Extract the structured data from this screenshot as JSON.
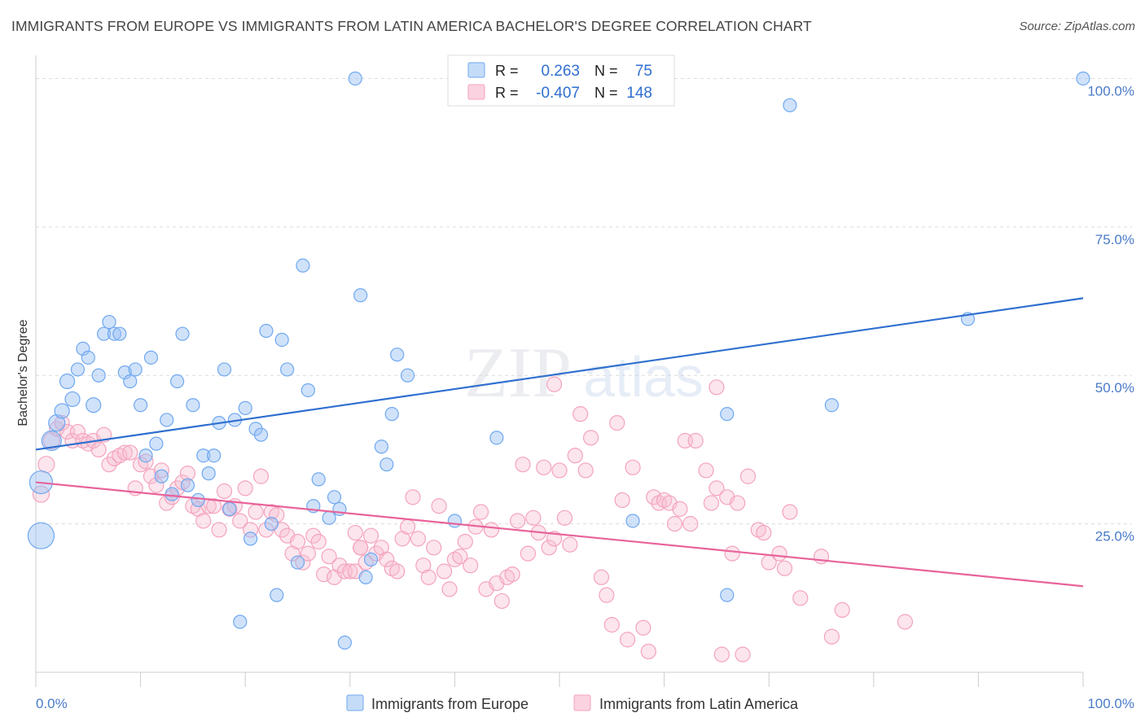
{
  "title": "IMMIGRANTS FROM EUROPE VS IMMIGRANTS FROM LATIN AMERICA BACHELOR'S DEGREE CORRELATION CHART",
  "source": "Source: ZipAtlas.com",
  "watermark": {
    "zip": "ZIP",
    "atlas": "atlas"
  },
  "colors": {
    "europe": "#6fa8f0",
    "europe_line": "#2f6fcf",
    "latam": "#f4a3bd",
    "latam_line": "#e8639a",
    "axis_text": "#4a7bc8"
  },
  "legend_top": {
    "rows": [
      {
        "r_label": "R =",
        "r_value": "0.263",
        "n_label": "N =",
        "n_value": "75"
      },
      {
        "r_label": "R =",
        "r_value": "-0.407",
        "n_label": "N =",
        "n_value": "148"
      }
    ]
  },
  "chart_data": {
    "type": "scatter",
    "ylabel": "Bachelor's Degree",
    "xlim": [
      0,
      100
    ],
    "ylim": [
      0,
      105
    ],
    "x_tick_labels": {
      "left": "0.0%",
      "right": "100.0%"
    },
    "y_tick_labels": [
      {
        "value": 100,
        "label": "100.0%"
      },
      {
        "value": 75,
        "label": "75.0%"
      },
      {
        "value": 50,
        "label": "50.0%"
      },
      {
        "value": 25,
        "label": "25.0%"
      }
    ],
    "grid": true,
    "legend_bottom": [
      "Immigrants from Europe",
      "Immigrants from Latin America"
    ],
    "series": [
      {
        "name": "Immigrants from Europe",
        "trend": [
          [
            0,
            37.5
          ],
          [
            100,
            63
          ]
        ],
        "points": [
          [
            0.5,
            23,
            16
          ],
          [
            0.5,
            32,
            14
          ],
          [
            1.5,
            39,
            12
          ],
          [
            2,
            42,
            10
          ],
          [
            2.5,
            44,
            9
          ],
          [
            3,
            49,
            9
          ],
          [
            3.5,
            46,
            9
          ],
          [
            4,
            51,
            8
          ],
          [
            4.5,
            54.5,
            8
          ],
          [
            5,
            53,
            8
          ],
          [
            5.5,
            45,
            9
          ],
          [
            6,
            50,
            8
          ],
          [
            6.5,
            57,
            8
          ],
          [
            7,
            59,
            8
          ],
          [
            7.5,
            57,
            8
          ],
          [
            8,
            57,
            8
          ],
          [
            8.5,
            50.5,
            8
          ],
          [
            9,
            49,
            8
          ],
          [
            9.5,
            51,
            8
          ],
          [
            10,
            45,
            8
          ],
          [
            10.5,
            36.5,
            8
          ],
          [
            11,
            53,
            8
          ],
          [
            11.5,
            38.5,
            8
          ],
          [
            12,
            33,
            8
          ],
          [
            12.5,
            42.5,
            8
          ],
          [
            13,
            30,
            8
          ],
          [
            13.5,
            49,
            8
          ],
          [
            14,
            57,
            8
          ],
          [
            14.5,
            31.5,
            8
          ],
          [
            15,
            45,
            8
          ],
          [
            15.5,
            29,
            8
          ],
          [
            16,
            36.5,
            8
          ],
          [
            16.5,
            33.5,
            8
          ],
          [
            17,
            36.5,
            8
          ],
          [
            17.5,
            42,
            8
          ],
          [
            18,
            51,
            8
          ],
          [
            18.5,
            27.5,
            8
          ],
          [
            19,
            42.5,
            8
          ],
          [
            20,
            44.5,
            8
          ],
          [
            19.5,
            8.5,
            8
          ],
          [
            20.5,
            22.5,
            8
          ],
          [
            21,
            41,
            8
          ],
          [
            21.5,
            40,
            8
          ],
          [
            22,
            57.5,
            8
          ],
          [
            22.5,
            25,
            8
          ],
          [
            23,
            13,
            8
          ],
          [
            23.5,
            56,
            8
          ],
          [
            24,
            51,
            8
          ],
          [
            25,
            18.5,
            8
          ],
          [
            25.5,
            68.5,
            8
          ],
          [
            26,
            47.5,
            8
          ],
          [
            26.5,
            28,
            8
          ],
          [
            27,
            32.5,
            8
          ],
          [
            28,
            26,
            8
          ],
          [
            28.5,
            29.5,
            8
          ],
          [
            29,
            27.5,
            8
          ],
          [
            29.5,
            5,
            8
          ],
          [
            30.5,
            100,
            8
          ],
          [
            31,
            63.5,
            8
          ],
          [
            31.5,
            16,
            8
          ],
          [
            32,
            19,
            8
          ],
          [
            33,
            38,
            8
          ],
          [
            33.5,
            35,
            8
          ],
          [
            34,
            43.5,
            8
          ],
          [
            34.5,
            53.5,
            8
          ],
          [
            35.5,
            50,
            8
          ],
          [
            40,
            25.5,
            8
          ],
          [
            44,
            39.5,
            8
          ],
          [
            57,
            25.5,
            8
          ],
          [
            66,
            13,
            8
          ],
          [
            66,
            43.5,
            8
          ],
          [
            72,
            95.5,
            8
          ],
          [
            76,
            45,
            8
          ],
          [
            89,
            59.5,
            8
          ],
          [
            100,
            100,
            8
          ]
        ]
      },
      {
        "name": "Immigrants from Latin America",
        "trend": [
          [
            0,
            32
          ],
          [
            100,
            14.5
          ]
        ],
        "points": [
          [
            0.5,
            30,
            10
          ],
          [
            1,
            35,
            10
          ],
          [
            1.5,
            39,
            10
          ],
          [
            2,
            41,
            9
          ],
          [
            2.5,
            42,
            9
          ],
          [
            3,
            40.5,
            9
          ],
          [
            3.5,
            39,
            9
          ],
          [
            4,
            40.5,
            9
          ],
          [
            4.5,
            39,
            9
          ],
          [
            5,
            38.5,
            9
          ],
          [
            5.5,
            39,
            9
          ],
          [
            6,
            37.5,
            9
          ],
          [
            6.5,
            40,
            9
          ],
          [
            7,
            35,
            9
          ],
          [
            7.5,
            36,
            9
          ],
          [
            8,
            36.5,
            9
          ],
          [
            8.5,
            37,
            9
          ],
          [
            9,
            37,
            9
          ],
          [
            9.5,
            31,
            9
          ],
          [
            10,
            35,
            9
          ],
          [
            10.5,
            35.5,
            9
          ],
          [
            11,
            33,
            9
          ],
          [
            11.5,
            31.5,
            9
          ],
          [
            12,
            34,
            9
          ],
          [
            12.5,
            28.5,
            9
          ],
          [
            13,
            29.5,
            9
          ],
          [
            13.5,
            31,
            9
          ],
          [
            14,
            32,
            9
          ],
          [
            14.5,
            33.5,
            9
          ],
          [
            15,
            28,
            9
          ],
          [
            15.5,
            27.5,
            9
          ],
          [
            16,
            25.5,
            9
          ],
          [
            16.5,
            28,
            9
          ],
          [
            17,
            28,
            9
          ],
          [
            17.5,
            24,
            9
          ],
          [
            18,
            30.5,
            9
          ],
          [
            18.5,
            27.5,
            9
          ],
          [
            19,
            28,
            9
          ],
          [
            19.5,
            25.5,
            9
          ],
          [
            20,
            31,
            9
          ],
          [
            20.5,
            24,
            9
          ],
          [
            21,
            27,
            9
          ],
          [
            21.5,
            33,
            9
          ],
          [
            22,
            24,
            9
          ],
          [
            22.5,
            27,
            9
          ],
          [
            23,
            26.5,
            9
          ],
          [
            23.5,
            24,
            9
          ],
          [
            24,
            23,
            9
          ],
          [
            24.5,
            20,
            9
          ],
          [
            25,
            22,
            9
          ],
          [
            25.5,
            18.5,
            9
          ],
          [
            26,
            20,
            9
          ],
          [
            26.5,
            23,
            9
          ],
          [
            27,
            22,
            9
          ],
          [
            27.5,
            16.5,
            9
          ],
          [
            28,
            19.5,
            9
          ],
          [
            28.5,
            16,
            9
          ],
          [
            29,
            18,
            9
          ],
          [
            29.5,
            17,
            9
          ],
          [
            30,
            17,
            9
          ],
          [
            30.5,
            23.5,
            9
          ],
          [
            31,
            21,
            9
          ],
          [
            31.5,
            18.5,
            9
          ],
          [
            32,
            23,
            9
          ],
          [
            32.5,
            20,
            9
          ],
          [
            33,
            21,
            9
          ],
          [
            33.5,
            19,
            9
          ],
          [
            34,
            17.5,
            9
          ],
          [
            34.5,
            17,
            9
          ],
          [
            35,
            22.5,
            9
          ],
          [
            35.5,
            24.5,
            9
          ],
          [
            36,
            29.5,
            9
          ],
          [
            36.5,
            22.5,
            9
          ],
          [
            37,
            18,
            9
          ],
          [
            37.5,
            16,
            9
          ],
          [
            38,
            21,
            9
          ],
          [
            38.5,
            28,
            9
          ],
          [
            39,
            17,
            9
          ],
          [
            39.5,
            14,
            9
          ],
          [
            40,
            19,
            9
          ],
          [
            40.5,
            19.5,
            9
          ],
          [
            41,
            22,
            9
          ],
          [
            41.5,
            18,
            9
          ],
          [
            42,
            24.5,
            9
          ],
          [
            42.5,
            27,
            9
          ],
          [
            43,
            14,
            9
          ],
          [
            43.5,
            24,
            9
          ],
          [
            44,
            15,
            9
          ],
          [
            44.5,
            12,
            9
          ],
          [
            45,
            16,
            9
          ],
          [
            45.5,
            16.5,
            9
          ],
          [
            46,
            25.5,
            9
          ],
          [
            46.5,
            35,
            9
          ],
          [
            47,
            20,
            9
          ],
          [
            47.5,
            26,
            9
          ],
          [
            48,
            23.5,
            9
          ],
          [
            48.5,
            34.5,
            9
          ],
          [
            49,
            21,
            9
          ],
          [
            49.5,
            22.5,
            9
          ],
          [
            50,
            34,
            9
          ],
          [
            50.5,
            26,
            9
          ],
          [
            51,
            21.5,
            9
          ],
          [
            51.5,
            36.5,
            9
          ],
          [
            52,
            43.5,
            9
          ],
          [
            52.5,
            34,
            9
          ],
          [
            53,
            39.5,
            9
          ],
          [
            54,
            16,
            9
          ],
          [
            54.5,
            13,
            9
          ],
          [
            55,
            8,
            9
          ],
          [
            55.5,
            42,
            9
          ],
          [
            56,
            29,
            9
          ],
          [
            56.5,
            5.5,
            9
          ],
          [
            57,
            34.5,
            9
          ],
          [
            58,
            7.5,
            9
          ],
          [
            58.5,
            3.5,
            9
          ],
          [
            59,
            29.5,
            9
          ],
          [
            59.5,
            28.5,
            9
          ],
          [
            60,
            29,
            9
          ],
          [
            60.5,
            28.5,
            9
          ],
          [
            61,
            25,
            9
          ],
          [
            61.5,
            27.5,
            9
          ],
          [
            62,
            39,
            9
          ],
          [
            62.5,
            25,
            9
          ],
          [
            63,
            39,
            9
          ],
          [
            64,
            34,
            9
          ],
          [
            64.5,
            28.5,
            9
          ],
          [
            65,
            31,
            9
          ],
          [
            65.5,
            3,
            9
          ],
          [
            66,
            29.5,
            9
          ],
          [
            66.5,
            20,
            9
          ],
          [
            67,
            28.5,
            9
          ],
          [
            67.5,
            3,
            9
          ],
          [
            68,
            33,
            9
          ],
          [
            69,
            24,
            9
          ],
          [
            69.5,
            23.5,
            9
          ],
          [
            70,
            18.5,
            9
          ],
          [
            71,
            20,
            9
          ],
          [
            71.5,
            17.5,
            9
          ],
          [
            72,
            27,
            9
          ],
          [
            73,
            12.5,
            9
          ],
          [
            75,
            19.5,
            9
          ],
          [
            76,
            6,
            9
          ],
          [
            77,
            10.5,
            9
          ],
          [
            83,
            8.5,
            9
          ],
          [
            49.5,
            48.5,
            9
          ],
          [
            65,
            48,
            9
          ],
          [
            30.5,
            17,
            9
          ],
          [
            31,
            21,
            9
          ]
        ]
      }
    ]
  }
}
